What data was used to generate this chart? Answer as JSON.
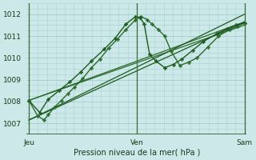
{
  "background_color": "#cce8e8",
  "grid_color": "#a8d0d0",
  "title": "Pression niveau de la mer( hPa )",
  "ylim": [
    1006.5,
    1012.5
  ],
  "yticks": [
    1007,
    1008,
    1009,
    1010,
    1011,
    1012
  ],
  "xlabel_ticks": [
    "Jeu",
    "Ven",
    "Sam"
  ],
  "xlabel_tick_pos": [
    0.0,
    0.5,
    1.0
  ],
  "vline_color": "#3a6a3a",
  "bottom_line_color": "#2a5a2a",
  "series": [
    {
      "x": [
        0.0,
        0.04,
        0.07,
        0.09,
        0.12,
        0.15,
        0.18,
        0.21,
        0.25,
        0.29,
        0.33,
        0.37,
        0.41,
        0.45,
        0.495,
        0.52,
        0.55,
        0.57,
        0.6,
        0.63,
        0.66,
        0.7,
        0.74,
        0.78,
        0.83,
        0.88,
        0.93,
        0.97,
        1.0
      ],
      "y": [
        1008.05,
        1007.35,
        1007.15,
        1007.4,
        1007.75,
        1008.05,
        1008.35,
        1008.65,
        1009.05,
        1009.55,
        1009.95,
        1010.45,
        1010.85,
        1011.3,
        1011.75,
        1011.9,
        1011.75,
        1011.55,
        1011.3,
        1011.0,
        1010.3,
        1009.65,
        1009.8,
        1010.0,
        1010.5,
        1011.0,
        1011.3,
        1011.45,
        1011.6
      ],
      "style": "-",
      "marker": "P",
      "color": "#2d6b2d",
      "lw": 1.0,
      "ms": 3.5,
      "zorder": 4
    },
    {
      "x": [
        0.0,
        0.05,
        0.09,
        0.14,
        0.19,
        0.24,
        0.29,
        0.35,
        0.4,
        0.45,
        0.495,
        0.515,
        0.535,
        0.56,
        0.59,
        0.63,
        0.67,
        0.71,
        0.76,
        0.81,
        0.87,
        0.92,
        0.96,
        1.0
      ],
      "y": [
        1008.05,
        1007.5,
        1008.1,
        1008.5,
        1008.9,
        1009.35,
        1009.85,
        1010.4,
        1010.9,
        1011.55,
        1011.9,
        1011.85,
        1011.55,
        1010.15,
        1009.85,
        1009.55,
        1009.7,
        1009.95,
        1010.35,
        1010.75,
        1011.1,
        1011.35,
        1011.5,
        1011.6
      ],
      "style": "-",
      "marker": "P",
      "color": "#1e5a1e",
      "lw": 1.0,
      "ms": 3.5,
      "zorder": 4
    },
    {
      "x": [
        0.0,
        1.0
      ],
      "y": [
        1008.05,
        1011.65
      ],
      "style": "-",
      "marker": "None",
      "color": "#2d6b2d",
      "lw": 0.9,
      "ms": 0,
      "zorder": 2
    },
    {
      "x": [
        0.0,
        1.0
      ],
      "y": [
        1008.05,
        1011.5
      ],
      "style": "-",
      "marker": "None",
      "color": "#2d6b2d",
      "lw": 0.9,
      "ms": 0,
      "zorder": 2
    },
    {
      "x": [
        0.0,
        1.0
      ],
      "y": [
        1007.15,
        1011.65
      ],
      "style": "-",
      "marker": "None",
      "color": "#1e5a1e",
      "lw": 0.9,
      "ms": 0,
      "zorder": 2
    },
    {
      "x": [
        0.0,
        1.0
      ],
      "y": [
        1007.15,
        1012.0
      ],
      "style": "-",
      "marker": "None",
      "color": "#1e5a1e",
      "lw": 0.9,
      "ms": 0,
      "zorder": 2
    }
  ]
}
